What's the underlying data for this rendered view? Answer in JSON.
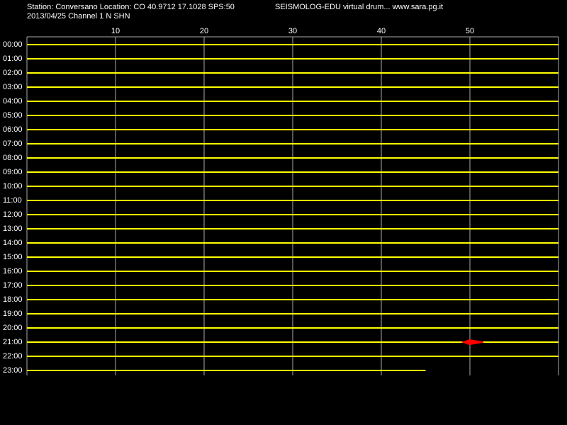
{
  "chart_data": {
    "type": "helicorder",
    "title": "Station: Conversano Location: CO 40.9712 17.1028 SPS:50",
    "subtitle": "2013/04/25  Channel 1 N SHN",
    "annotation": "SEISMOLOG-EDU virtual drum... www.sara.pg.it",
    "categories": [
      "00:00",
      "01:00",
      "02:00",
      "03:00",
      "04:00",
      "05:00",
      "06:00",
      "07:00",
      "08:00",
      "09:00",
      "10:00",
      "11:00",
      "12:00",
      "13:00",
      "14:00",
      "15:00",
      "16:00",
      "17:00",
      "18:00",
      "19:00",
      "20:00",
      "21:00",
      "22:00",
      "23:00"
    ],
    "values": [
      60,
      60,
      60,
      60,
      60,
      60,
      60,
      60,
      60,
      60,
      60,
      60,
      60,
      60,
      60,
      60,
      60,
      60,
      60,
      60,
      60,
      60,
      60,
      45
    ],
    "color": "#ffff00",
    "events": {
      "color": "#ff0000",
      "start": [
        null,
        null,
        null,
        null,
        null,
        null,
        null,
        null,
        null,
        null,
        null,
        null,
        null,
        null,
        null,
        null,
        null,
        null,
        null,
        null,
        null,
        49,
        null,
        null
      ],
      "end": [
        null,
        null,
        null,
        null,
        null,
        null,
        null,
        null,
        null,
        null,
        null,
        null,
        null,
        null,
        null,
        null,
        null,
        null,
        null,
        null,
        null,
        51.5,
        null,
        null
      ]
    },
    "xlim": [
      0,
      60
    ],
    "xticks": [
      10,
      20,
      30,
      40,
      50
    ],
    "grid": true
  }
}
